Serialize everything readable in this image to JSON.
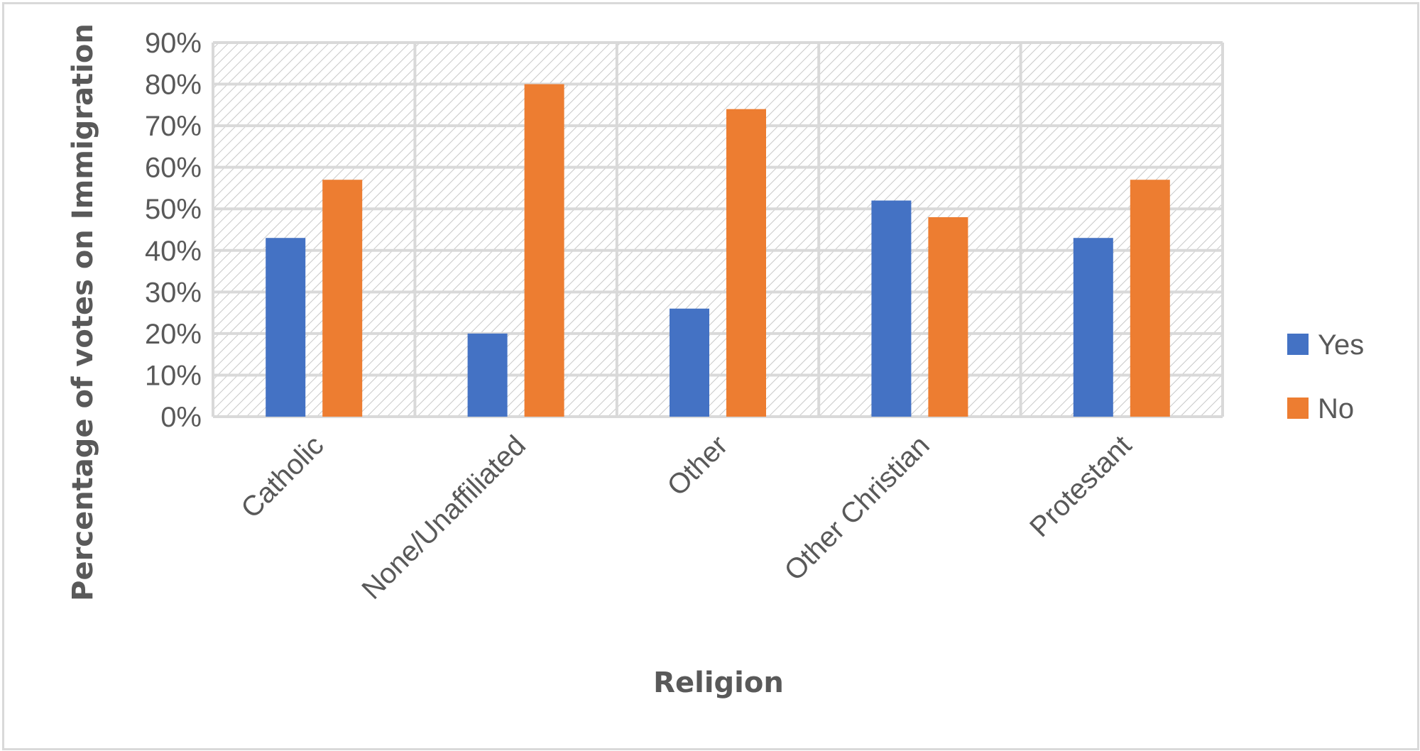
{
  "chart_data": {
    "type": "bar",
    "title": "",
    "xlabel": "Religion",
    "ylabel": "Percentage of votes on Immigration",
    "categories": [
      "Catholic",
      "None/Unaffiliated",
      "Other",
      "Other Christian",
      "Protestant"
    ],
    "series": [
      {
        "name": "Yes",
        "color": "#4472C4",
        "values": [
          43,
          20,
          26,
          52,
          43
        ]
      },
      {
        "name": "No",
        "color": "#ED7D31",
        "values": [
          57,
          80,
          74,
          48,
          57
        ]
      }
    ],
    "ylim": [
      0,
      90
    ],
    "y_ticks": [
      "0%",
      "10%",
      "20%",
      "30%",
      "40%",
      "50%",
      "60%",
      "70%",
      "80%",
      "90%"
    ],
    "grid": true,
    "legend_position": "right"
  }
}
